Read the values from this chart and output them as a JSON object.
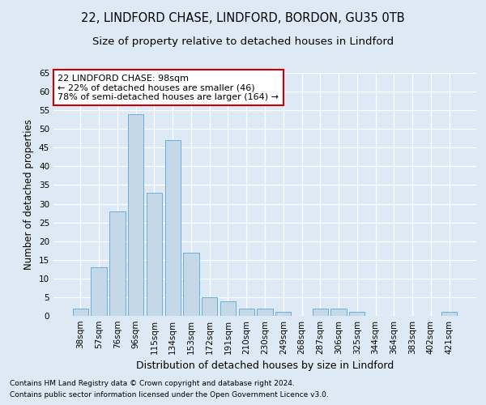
{
  "title1": "22, LINDFORD CHASE, LINDFORD, BORDON, GU35 0TB",
  "title2": "Size of property relative to detached houses in Lindford",
  "xlabel": "Distribution of detached houses by size in Lindford",
  "ylabel": "Number of detached properties",
  "categories": [
    "38sqm",
    "57sqm",
    "76sqm",
    "96sqm",
    "115sqm",
    "134sqm",
    "153sqm",
    "172sqm",
    "191sqm",
    "210sqm",
    "230sqm",
    "249sqm",
    "268sqm",
    "287sqm",
    "306sqm",
    "325sqm",
    "344sqm",
    "364sqm",
    "383sqm",
    "402sqm",
    "421sqm"
  ],
  "values": [
    2,
    13,
    28,
    54,
    33,
    47,
    17,
    5,
    4,
    2,
    2,
    1,
    0,
    2,
    2,
    1,
    0,
    0,
    0,
    0,
    1
  ],
  "bar_color": "#c5d8e8",
  "bar_edge_color": "#6aaed6",
  "annotation_text": "22 LINDFORD CHASE: 98sqm\n← 22% of detached houses are smaller (46)\n78% of semi-detached houses are larger (164) →",
  "annotation_box_color": "white",
  "annotation_box_edge_color": "#cc0000",
  "ylim": [
    0,
    65
  ],
  "yticks": [
    0,
    5,
    10,
    15,
    20,
    25,
    30,
    35,
    40,
    45,
    50,
    55,
    60,
    65
  ],
  "footer1": "Contains HM Land Registry data © Crown copyright and database right 2024.",
  "footer2": "Contains public sector information licensed under the Open Government Licence v3.0.",
  "bg_color": "#ddeaf5",
  "plot_bg_color": "#ddeaf5",
  "title1_fontsize": 10.5,
  "title2_fontsize": 9.5,
  "xlabel_fontsize": 9,
  "ylabel_fontsize": 8.5,
  "tick_fontsize": 7.5,
  "annot_fontsize": 8,
  "footer_fontsize": 6.5
}
